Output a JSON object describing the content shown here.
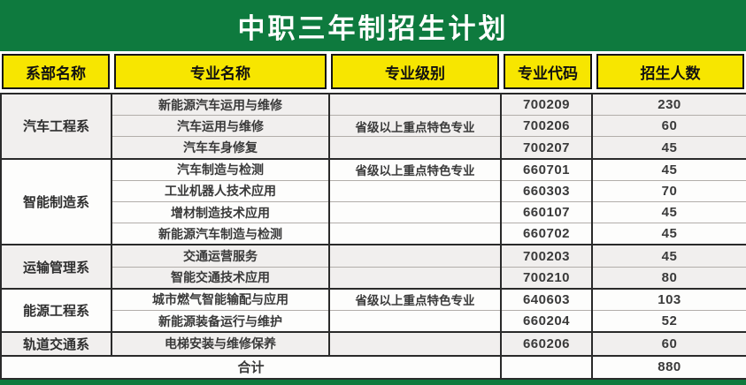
{
  "title": "中职三年制招生计划",
  "colors": {
    "header_green": "#0e7a3e",
    "header_yellow": "#f7e600"
  },
  "columns": [
    "系部名称",
    "专业名称",
    "专业级别",
    "专业代码",
    "招生人数"
  ],
  "sections": [
    {
      "dept": "汽车工程系",
      "rows": [
        {
          "major": "新能源汽车运用与维修",
          "level": "",
          "code": "700209",
          "count": "230"
        },
        {
          "major": "汽车运用与维修",
          "level": "省级以上重点特色专业",
          "code": "700206",
          "count": "60"
        },
        {
          "major": "汽车车身修复",
          "level": "",
          "code": "700207",
          "count": "45"
        }
      ]
    },
    {
      "dept": "智能制造系",
      "rows": [
        {
          "major": "汽车制造与检测",
          "level": "省级以上重点特色专业",
          "code": "660701",
          "count": "45"
        },
        {
          "major": "工业机器人技术应用",
          "level": "",
          "code": "660303",
          "count": "70"
        },
        {
          "major": "增材制造技术应用",
          "level": "",
          "code": "660107",
          "count": "45"
        },
        {
          "major": "新能源汽车制造与检测",
          "level": "",
          "code": "660702",
          "count": "45"
        }
      ]
    },
    {
      "dept": "运输管理系",
      "rows": [
        {
          "major": "交通运营服务",
          "level": "",
          "code": "700203",
          "count": "45"
        },
        {
          "major": "智能交通技术应用",
          "level": "",
          "code": "700210",
          "count": "80"
        }
      ]
    },
    {
      "dept": "能源工程系",
      "rows": [
        {
          "major": "城市燃气智能输配与应用",
          "level": "省级以上重点特色专业",
          "code": "640603",
          "count": "103"
        },
        {
          "major": "新能源装备运行与维护",
          "level": "",
          "code": "660204",
          "count": "52"
        }
      ]
    },
    {
      "dept": "轨道交通系",
      "rows": [
        {
          "major": "电梯安装与维修保养",
          "level": "",
          "code": "660206",
          "count": "60"
        }
      ]
    }
  ],
  "total": {
    "label": "合计",
    "code": "",
    "count": "880"
  }
}
